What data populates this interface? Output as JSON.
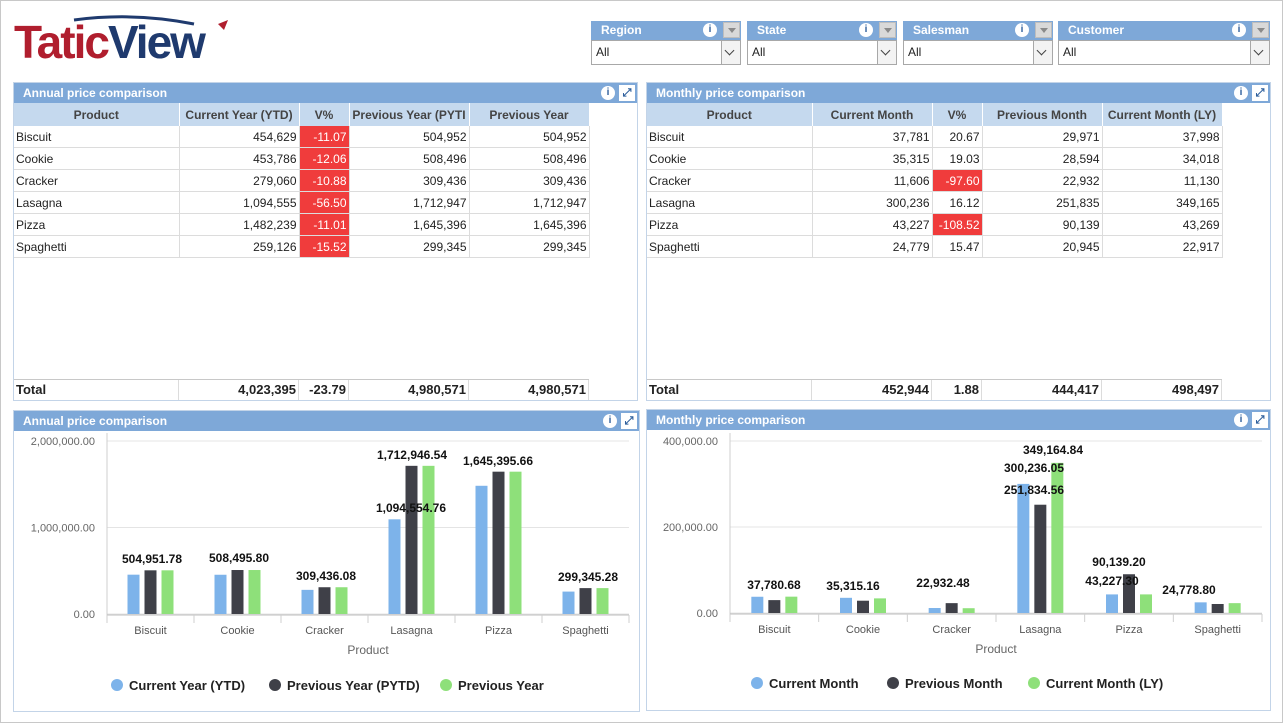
{
  "logo": {
    "part1": "Tatic",
    "part2": "View"
  },
  "filters": [
    {
      "label": "Region",
      "value": "All"
    },
    {
      "label": "State",
      "value": "All"
    },
    {
      "label": "Salesman",
      "value": "All"
    },
    {
      "label": "Customer",
      "value": "All"
    }
  ],
  "annual_table": {
    "title": "Annual price comparison",
    "columns": [
      "Product",
      "Current Year (YTD)",
      "V%",
      "Previous Year (PYTI",
      "Previous Year"
    ],
    "rows": [
      [
        "Biscuit",
        "454,629",
        "-11.07",
        "504,952",
        "504,952"
      ],
      [
        "Cookie",
        "453,786",
        "-12.06",
        "508,496",
        "508,496"
      ],
      [
        "Cracker",
        "279,060",
        "-10.88",
        "309,436",
        "309,436"
      ],
      [
        "Lasagna",
        "1,094,555",
        "-56.50",
        "1,712,947",
        "1,712,947"
      ],
      [
        "Pizza",
        "1,482,239",
        "-11.01",
        "1,645,396",
        "1,645,396"
      ],
      [
        "Spaghetti",
        "259,126",
        "-15.52",
        "299,345",
        "299,345"
      ]
    ],
    "total": [
      "Total",
      "4,023,395",
      "-23.79",
      "4,980,571",
      "4,980,571"
    ]
  },
  "monthly_table": {
    "title": "Monthly price comparison",
    "columns": [
      "Product",
      "Current Month",
      "V%",
      "Previous Month",
      "Current Month (LY)"
    ],
    "rows": [
      [
        "Biscuit",
        "37,781",
        "20.67",
        "29,971",
        "37,998"
      ],
      [
        "Cookie",
        "35,315",
        "19.03",
        "28,594",
        "34,018"
      ],
      [
        "Cracker",
        "11,606",
        "-97.60",
        "22,932",
        "11,130"
      ],
      [
        "Lasagna",
        "300,236",
        "16.12",
        "251,835",
        "349,165"
      ],
      [
        "Pizza",
        "43,227",
        "-108.52",
        "90,139",
        "43,269"
      ],
      [
        "Spaghetti",
        "24,779",
        "15.47",
        "20,945",
        "22,917"
      ]
    ],
    "total": [
      "Total",
      "452,944",
      "1.88",
      "444,417",
      "498,497"
    ]
  },
  "colors": {
    "series1": "#7db3ea",
    "series2": "#3f4048",
    "series3": "#8ee07a",
    "header": "#7ea8d8",
    "negative": "#f03c3c"
  },
  "chart_data": [
    {
      "type": "bar",
      "title": "Annual price comparison",
      "xlabel": "Product",
      "ylabel": "",
      "categories": [
        "Biscuit",
        "Cookie",
        "Cracker",
        "Lasagna",
        "Pizza",
        "Spaghetti"
      ],
      "yticks": [
        "0.00",
        "1,000,000.00",
        "2,000,000.00"
      ],
      "ylim": [
        0,
        2000000
      ],
      "series": [
        {
          "name": "Current Year (YTD)",
          "values": [
            454629,
            453786,
            279060,
            1094555,
            1482239,
            259126
          ]
        },
        {
          "name": "Previous Year (PYTD)",
          "values": [
            504952,
            508496,
            309436,
            1712947,
            1645396,
            299345
          ]
        },
        {
          "name": "Previous Year",
          "values": [
            504952,
            508496,
            309436,
            1712947,
            1645396,
            299345
          ]
        }
      ],
      "data_labels": [
        "504,951.78",
        "508,495.80",
        "309,436.08",
        "1,094,554.76",
        "1,712,946.54",
        "1,645,395.66",
        "299,345.28"
      ],
      "legend": "bottom"
    },
    {
      "type": "bar",
      "title": "Monthly price comparison",
      "xlabel": "Product",
      "ylabel": "",
      "categories": [
        "Biscuit",
        "Cookie",
        "Cracker",
        "Lasagna",
        "Pizza",
        "Spaghetti"
      ],
      "yticks": [
        "0.00",
        "200,000.00",
        "400,000.00"
      ],
      "ylim": [
        0,
        400000
      ],
      "series": [
        {
          "name": "Current Month",
          "values": [
            37781,
            35315,
            11606,
            300236,
            43227,
            24779
          ]
        },
        {
          "name": "Previous Month",
          "values": [
            29971,
            28594,
            22932,
            251835,
            90139,
            20945
          ]
        },
        {
          "name": "Current Month (LY)",
          "values": [
            37998,
            34018,
            11130,
            349165,
            43269,
            22917
          ]
        }
      ],
      "data_labels": [
        "37,780.68",
        "35,315.16",
        "22,932.48",
        "300,236.05",
        "251,834.56",
        "349,164.84",
        "90,139.20",
        "43,227.30",
        "24,778.80"
      ],
      "legend": "bottom"
    }
  ]
}
